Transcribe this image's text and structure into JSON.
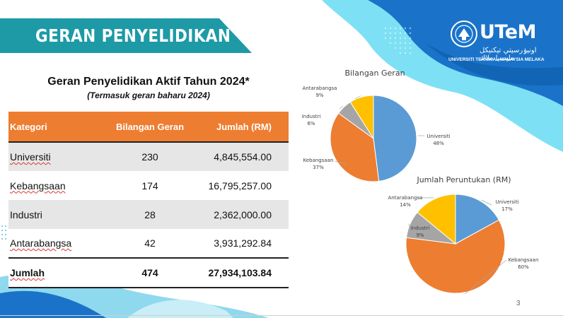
{
  "banner": {
    "title": "GERAN PENYELIDIKAN"
  },
  "logo": {
    "text": "UTeM",
    "jawi": "اونيۏرسيتي تيكنيكل مليسيا ملاك",
    "subtitle": "UNIVERSITI TEKNIKAL MALAYSIA MELAKA"
  },
  "table": {
    "title": "Geran Penyelidikan Aktif Tahun 2024*",
    "subtitle": "(Termasuk geran baharu 2024)",
    "headers": [
      "Kategori",
      "Bilangan Geran",
      "Jumlah (RM)"
    ],
    "rows": [
      {
        "kategori": "Universiti",
        "bilangan": "230",
        "jumlah": "4,845,554.00"
      },
      {
        "kategori": "Kebangsaan",
        "bilangan": "174",
        "jumlah": "16,795,257.00"
      },
      {
        "kategori": "Industri",
        "bilangan": "28",
        "jumlah": "2,362,000.00"
      },
      {
        "kategori": "Antarabangsa",
        "bilangan": "42",
        "jumlah": "3,931,292.84"
      }
    ],
    "total": {
      "kategori": "Jumlah",
      "bilangan": "474",
      "jumlah": "27,934,103.84"
    }
  },
  "chart_data": [
    {
      "type": "pie",
      "title": "Bilangan Geran",
      "categories": [
        "Universiti",
        "Kebangsaan",
        "Industri",
        "Antarabangsa"
      ],
      "values": [
        48,
        37,
        6,
        9
      ],
      "colors": [
        "#5b9bd5",
        "#ed7d31",
        "#a5a5a5",
        "#ffc000"
      ],
      "labels": [
        "48%",
        "37%",
        "6%",
        "9%"
      ]
    },
    {
      "type": "pie",
      "title": "Jumlah Peruntukan (RM)",
      "categories": [
        "Universiti",
        "Kebangsaan",
        "Industri",
        "Antarabangsa"
      ],
      "values": [
        17,
        60,
        9,
        14
      ],
      "colors": [
        "#5b9bd5",
        "#ed7d31",
        "#a5a5a5",
        "#ffc000"
      ],
      "labels": [
        "17%",
        "60%",
        "9%",
        "14%"
      ]
    }
  ],
  "page": {
    "number": "3"
  },
  "colors": {
    "teal": "#1d9aa6",
    "header_orange": "#ed7d31",
    "blue_deco": "#1f7fd0",
    "light_blue_deco": "#5fd3f0"
  }
}
